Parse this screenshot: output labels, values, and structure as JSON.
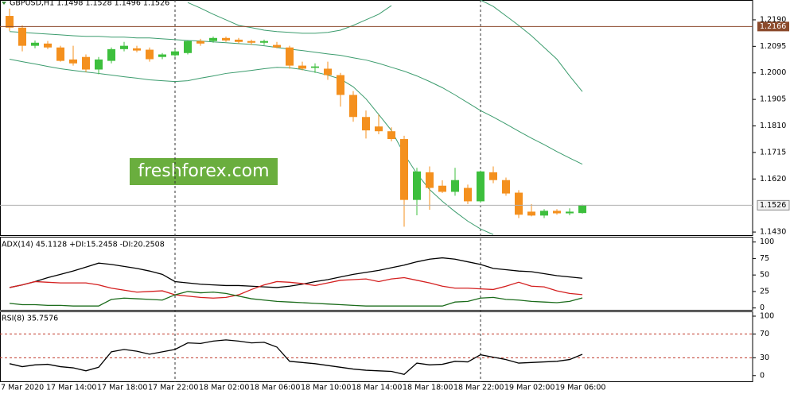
{
  "chart_data": [
    {
      "type": "candlestick",
      "title": "GBPUSD,H1  1.1498 1.1528 1.1496 1.1526",
      "watermark": "freshforex.com",
      "categories": [
        "7 Mar 2020",
        null,
        null,
        "17 Mar 14:00",
        null,
        null,
        null,
        "17 Mar 18:00",
        null,
        null,
        null,
        "17 Mar 22:00",
        null,
        null,
        null,
        "18 Mar 02:00",
        null,
        null,
        null,
        "18 Mar 06:00",
        null,
        null,
        null,
        "18 Mar 10:00",
        null,
        null,
        null,
        "18 Mar 14:00",
        null,
        null,
        null,
        "18 Mar 18:00",
        null,
        null,
        null,
        "18 Mar 22:00",
        null,
        null,
        null,
        "19 Mar 02:00",
        null,
        null,
        null,
        "19 Mar 06:00",
        null,
        null
      ],
      "open": [
        1.2204,
        1.2162,
        1.2097,
        1.2105,
        1.2091,
        1.2048,
        1.2057,
        1.2012,
        1.2043,
        1.2085,
        1.2088,
        1.2083,
        1.2057,
        1.2063,
        1.2071,
        1.2114,
        1.2114,
        1.2125,
        1.2119,
        1.2114,
        1.2108,
        1.21,
        1.2091,
        1.2026,
        1.2018,
        1.2015,
        1.1992,
        1.1921,
        1.1842,
        1.1808,
        1.1791,
        1.1763,
        1.1545,
        1.1644,
        1.1596,
        1.1574,
        1.1588,
        1.154,
        1.1644,
        1.1616,
        1.1571,
        1.1503,
        1.1489,
        1.1506,
        1.1497,
        1.1498
      ],
      "high": [
        1.223,
        1.217,
        1.2116,
        1.2114,
        1.2097,
        1.2097,
        1.2066,
        1.2057,
        1.2091,
        1.2111,
        1.2097,
        1.2091,
        1.2071,
        1.2085,
        1.2116,
        1.2122,
        1.213,
        1.213,
        1.2125,
        1.2119,
        1.2119,
        1.2111,
        1.2097,
        1.204,
        1.2034,
        1.204,
        1.2,
        1.1935,
        1.1865,
        1.185,
        1.1805,
        1.1775,
        1.166,
        1.1665,
        1.1615,
        1.166,
        1.16,
        1.165,
        1.1665,
        1.1625,
        1.158,
        1.153,
        1.1512,
        1.1512,
        1.1515,
        1.1528
      ],
      "low": [
        1.215,
        1.2077,
        1.2088,
        1.2085,
        1.204,
        1.2026,
        1.2003,
        1.1995,
        1.2034,
        1.2077,
        1.2074,
        1.204,
        1.2049,
        1.2057,
        1.2066,
        1.2097,
        1.2108,
        1.2111,
        1.2105,
        1.21,
        1.21,
        1.2088,
        1.2015,
        1.2009,
        1.2,
        1.1975,
        1.1879,
        1.1825,
        1.1765,
        1.178,
        1.1755,
        1.1449,
        1.149,
        1.151,
        1.157,
        1.156,
        1.153,
        1.1535,
        1.1605,
        1.156,
        1.148,
        1.1486,
        1.148,
        1.1492,
        1.149,
        1.1496
      ],
      "close": [
        1.2162,
        1.2097,
        1.2108,
        1.2091,
        1.2043,
        1.2034,
        1.2012,
        1.2048,
        1.2085,
        1.2097,
        1.208,
        1.2049,
        1.2066,
        1.2077,
        1.2114,
        1.2105,
        1.2125,
        1.2116,
        1.2111,
        1.2108,
        1.2114,
        1.2091,
        1.2026,
        1.2015,
        1.2023,
        1.1992,
        1.1921,
        1.1842,
        1.1794,
        1.1791,
        1.1763,
        1.1545,
        1.1647,
        1.1588,
        1.1574,
        1.1616,
        1.154,
        1.1647,
        1.1616,
        1.1568,
        1.1492,
        1.1489,
        1.1506,
        1.1497,
        1.1503,
        1.1526
      ],
      "up_color": "#3dbf3d",
      "down_color": "#f4901e",
      "overlays": [
        {
          "color": "#3c9c6e",
          "values": [
            null,
            null,
            null,
            null,
            null,
            null,
            null,
            null,
            null,
            null,
            null,
            null,
            null,
            null,
            1.2252,
            1.2232,
            1.221,
            1.219,
            1.217,
            1.2162,
            1.2153,
            1.2148,
            1.2145,
            1.2142,
            1.2142,
            1.2145,
            1.2153,
            1.217,
            1.219,
            1.221,
            1.2241,
            null,
            null,
            null,
            null,
            null,
            null,
            1.2261,
            1.2238,
            1.2204,
            1.217,
            1.2133,
            1.2091,
            1.2049,
            1.1989,
            1.1933
          ]
        },
        {
          "color": "#3c9c6e",
          "values": [
            1.2148,
            1.2145,
            1.2142,
            1.2139,
            1.2136,
            1.2133,
            1.2131,
            1.2131,
            1.2128,
            1.2128,
            1.2125,
            1.2125,
            1.2122,
            1.2119,
            1.2116,
            1.2114,
            1.2111,
            1.2108,
            1.2105,
            1.2102,
            1.2097,
            1.2091,
            1.2085,
            1.208,
            1.2074,
            1.2068,
            1.2063,
            1.2054,
            1.2046,
            1.2034,
            1.202,
            1.2006,
            1.1989,
            1.1969,
            1.1947,
            1.1921,
            1.1893,
            1.1865,
            1.1842,
            1.1817,
            1.1791,
            1.1766,
            1.1743,
            1.1718,
            1.1695,
            1.1673
          ]
        },
        {
          "color": "#3c9c6e",
          "values": [
            1.2049,
            1.204,
            1.2032,
            1.2023,
            1.2015,
            1.2009,
            1.2003,
            1.1998,
            1.1992,
            1.1986,
            1.1981,
            1.1975,
            1.1972,
            1.1969,
            1.1972,
            1.1981,
            1.1989,
            1.1998,
            1.2003,
            1.2009,
            1.2015,
            1.202,
            1.2018,
            1.2012,
            1.2003,
            1.1992,
            1.1978,
            1.195,
            1.1907,
            1.1851,
            1.1794,
            1.1709,
            1.1639,
            1.1582,
            1.154,
            1.1503,
            1.1469,
            1.1441,
            1.1421,
            null,
            null,
            null,
            null,
            null,
            null,
            null
          ]
        }
      ],
      "hlines": [
        {
          "value": 1.2166,
          "label": "1.2166",
          "color": "#8b4a2b"
        }
      ],
      "current_price": {
        "value": 1.1526,
        "label": "1.1526"
      },
      "ylim": [
        1.1416,
        1.2261
      ],
      "yticks": [
        {
          "value": 1.219,
          "label": "1.2190"
        },
        {
          "value": 1.2095,
          "label": "1.2095"
        },
        {
          "value": 1.2,
          "label": "1.2000"
        },
        {
          "value": 1.1905,
          "label": "1.1905"
        },
        {
          "value": 1.181,
          "label": "1.1810"
        },
        {
          "value": 1.1715,
          "label": "1.1715"
        },
        {
          "value": 1.162,
          "label": "1.1620"
        },
        {
          "value": 1.143,
          "label": "1.1430"
        }
      ]
    },
    {
      "type": "line",
      "title": "ADX(14) 45.1128 +DI:15.2458 -DI:20.2508",
      "series": [
        {
          "color": "#000000",
          "values": [
            31,
            35,
            40,
            46,
            51,
            56,
            62,
            68,
            66,
            63,
            60,
            56,
            51,
            40,
            38,
            36,
            35,
            34,
            34,
            33,
            32,
            31,
            33,
            36,
            40,
            43,
            47,
            51,
            54,
            57,
            61,
            65,
            70,
            74,
            76,
            74,
            70,
            66,
            60,
            58,
            56,
            55,
            52,
            49,
            47,
            45.1128
          ]
        },
        {
          "color": "#d42020",
          "values": [
            31,
            35,
            40,
            39,
            38,
            38,
            38,
            35,
            30,
            27,
            24,
            25,
            26,
            20,
            18,
            16,
            15,
            16,
            20,
            28,
            35,
            40,
            39,
            37,
            34,
            38,
            42,
            43,
            44,
            40,
            44,
            46,
            42,
            38,
            33,
            30,
            30,
            29,
            28,
            33,
            39,
            33,
            32,
            26,
            22,
            20.2508
          ]
        },
        {
          "color": "#1a6b1a",
          "values": [
            7,
            5,
            5,
            4,
            4,
            3,
            3,
            3,
            13,
            15,
            14,
            13,
            12,
            20,
            25,
            23,
            24,
            22,
            18,
            14,
            12,
            10,
            9,
            8,
            7,
            6,
            5,
            4,
            3,
            3,
            3,
            3,
            3,
            3,
            3,
            9,
            10,
            15,
            16,
            13,
            12,
            10,
            9,
            8,
            10,
            15.2458
          ]
        }
      ],
      "ylim": [
        -4,
        108
      ],
      "yticks": [
        100,
        75,
        50,
        25,
        0
      ]
    },
    {
      "type": "line",
      "title": "RSI(8) 35.7576",
      "series": [
        {
          "color": "#000000",
          "values": [
            20,
            15,
            18,
            19,
            15,
            13,
            8,
            14,
            40,
            44,
            41,
            36,
            40,
            44,
            55,
            54,
            58,
            60,
            58,
            55,
            56,
            48,
            24,
            22,
            20,
            17,
            14,
            11,
            9,
            8,
            7,
            2,
            21,
            18,
            19,
            24,
            23,
            35,
            31,
            27,
            21,
            22,
            23,
            24,
            27,
            35.7576
          ]
        }
      ],
      "levels": [
        70,
        30
      ],
      "level_color": "#c0392b",
      "ylim": [
        -11,
        108
      ],
      "yticks": [
        100,
        70,
        30,
        0
      ]
    }
  ]
}
